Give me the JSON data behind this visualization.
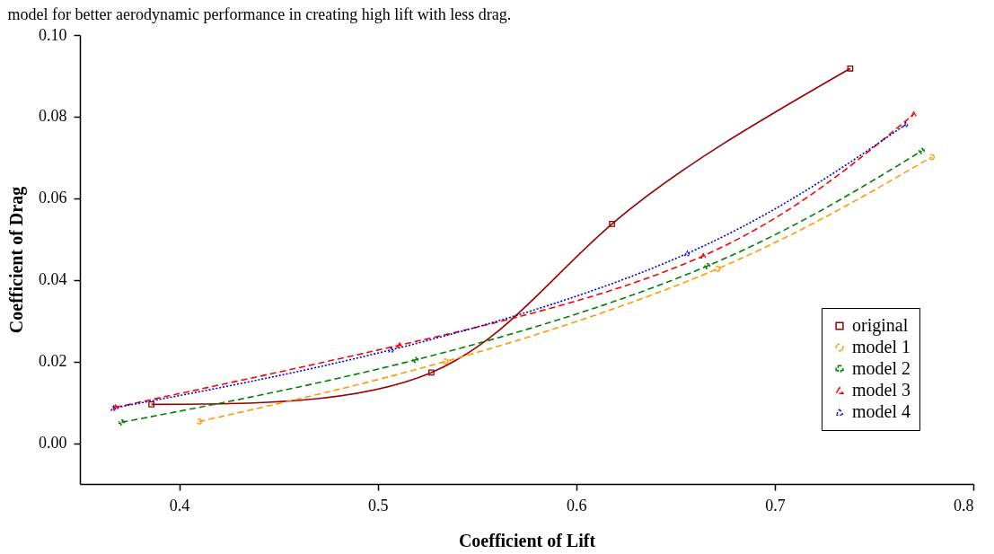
{
  "chart_data": {
    "type": "line",
    "annotations": [
      "model for better aerodynamic performance in creating high lift with less drag."
    ],
    "xlabel": "Coefficient of Lift",
    "ylabel": "Coefficient of Drag",
    "xlim": [
      0.35,
      0.8
    ],
    "xticks": [
      0.4,
      0.5,
      0.6,
      0.7,
      0.8
    ],
    "ylim": [
      -0.01,
      0.1
    ],
    "yticks": [
      {
        "value": 0,
        "label": "0.00"
      },
      {
        "value": 0.02,
        "label": "0.02"
      },
      {
        "value": 0.04,
        "label": "0.04"
      },
      {
        "value": 0.06,
        "label": "0.06"
      },
      {
        "value": 0.08,
        "label": "0.08"
      },
      {
        "value": 0.1,
        "label": "0.10"
      }
    ],
    "grid": false,
    "legend": "bottom right",
    "series": [
      {
        "name": "original",
        "color": "#990000",
        "marker": "square",
        "line_style": "solid",
        "x": [
          0.386,
          0.527,
          0.618,
          0.738
        ],
        "values": [
          0.0095,
          0.0173,
          0.0537,
          0.0918
        ]
      },
      {
        "name": "model 1",
        "color": "#ff9900",
        "marker": "circle",
        "line_style": "dashed",
        "x": [
          0.41,
          0.534,
          0.671,
          0.779
        ],
        "values": [
          0.0053,
          0.02,
          0.0427,
          0.0701
        ]
      },
      {
        "name": "model 2",
        "color": "#008000",
        "marker": "cross",
        "line_style": "dashed",
        "x": [
          0.371,
          0.519,
          0.666,
          0.774
        ],
        "values": [
          0.0051,
          0.0204,
          0.0434,
          0.0716
        ]
      },
      {
        "name": "model 3",
        "color": "#ff0000",
        "marker": "triangle",
        "line_style": "dashed",
        "x": [
          0.368,
          0.511,
          0.664,
          0.77
        ],
        "values": [
          0.0088,
          0.024,
          0.0459,
          0.0806
        ]
      },
      {
        "name": "model 4",
        "color": "#0000cc",
        "marker": "triangle",
        "line_style": "dotted",
        "x": [
          0.367,
          0.507,
          0.656,
          0.766
        ],
        "values": [
          0.0086,
          0.0229,
          0.0465,
          0.0781
        ]
      }
    ]
  }
}
